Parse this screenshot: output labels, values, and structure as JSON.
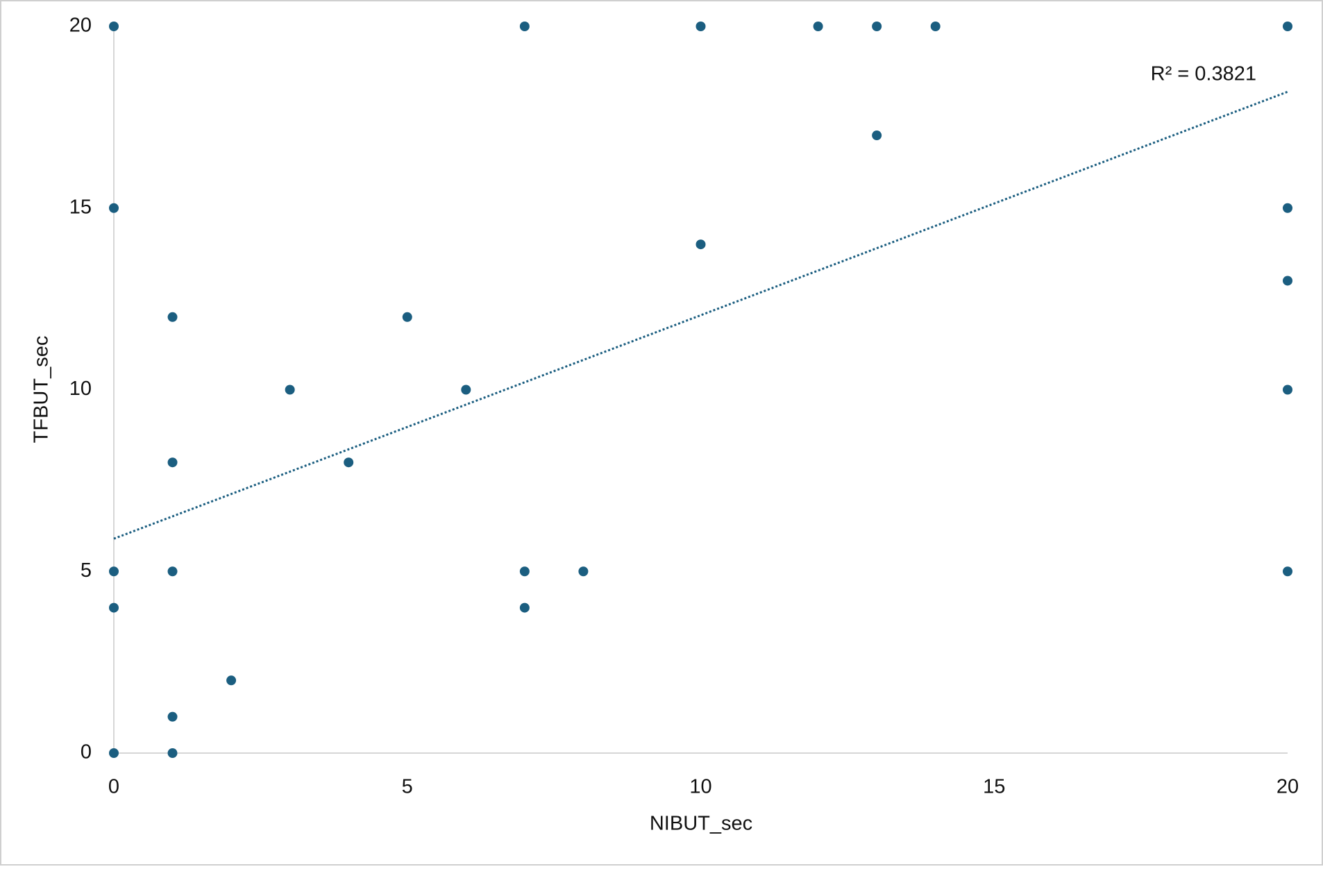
{
  "chart_data": {
    "type": "scatter",
    "x_label": "NIBUT_sec",
    "y_label": "TFBUT_sec",
    "x": [
      0,
      7,
      10,
      12,
      13,
      14,
      20,
      13,
      0,
      20,
      10,
      20,
      1,
      5,
      3,
      6,
      20,
      1,
      4,
      0,
      1,
      7,
      8,
      20,
      0,
      7,
      2,
      1,
      0,
      1
    ],
    "y": [
      20,
      20,
      20,
      20,
      20,
      20,
      20,
      17,
      15,
      15,
      14,
      13,
      12,
      12,
      10,
      10,
      10,
      8,
      8,
      5,
      5,
      5,
      5,
      5,
      4,
      4,
      2,
      1,
      0,
      0
    ],
    "color": "#1b5e80",
    "xlim": [
      0,
      20
    ],
    "ylim": [
      0,
      20
    ],
    "xticks": [
      0,
      5,
      10,
      15,
      20
    ],
    "yticks": [
      0,
      5,
      10,
      15,
      20
    ],
    "grid": false,
    "trendline": {
      "x": [
        0,
        20
      ],
      "y": [
        5.9,
        18.2
      ],
      "style": "dotted"
    },
    "annotation": "R² = 0.3821"
  }
}
